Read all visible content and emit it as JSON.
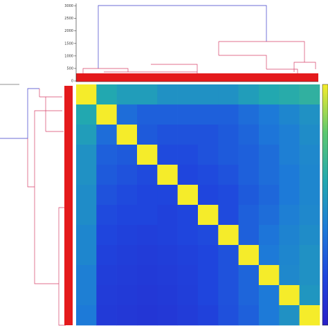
{
  "chart_data": {
    "type": "heatmap",
    "ylim": [
      0,
      3100
    ],
    "yticks": [
      0,
      500,
      1000,
      1500,
      2000,
      2500,
      3000
    ],
    "colormap": [
      "#2a20c8",
      "#1f45dd",
      "#1d7ad8",
      "#22a8b0",
      "#5cc870",
      "#f5ec2a"
    ],
    "matrix": [
      [
        1.0,
        0.6,
        0.55,
        0.55,
        0.5,
        0.5,
        0.5,
        0.5,
        0.55,
        0.6,
        0.62,
        0.65
      ],
      [
        0.6,
        1.0,
        0.35,
        0.3,
        0.3,
        0.3,
        0.3,
        0.3,
        0.35,
        0.4,
        0.45,
        0.5
      ],
      [
        0.55,
        0.35,
        1.0,
        0.28,
        0.25,
        0.25,
        0.25,
        0.28,
        0.32,
        0.38,
        0.42,
        0.48
      ],
      [
        0.5,
        0.3,
        0.28,
        1.0,
        0.22,
        0.22,
        0.25,
        0.28,
        0.3,
        0.35,
        0.42,
        0.46
      ],
      [
        0.5,
        0.28,
        0.25,
        0.22,
        1.0,
        0.2,
        0.22,
        0.25,
        0.3,
        0.35,
        0.4,
        0.45
      ],
      [
        0.48,
        0.25,
        0.22,
        0.2,
        0.2,
        1.0,
        0.2,
        0.22,
        0.28,
        0.33,
        0.4,
        0.45
      ],
      [
        0.48,
        0.22,
        0.2,
        0.2,
        0.18,
        0.2,
        1.0,
        0.22,
        0.3,
        0.35,
        0.42,
        0.46
      ],
      [
        0.45,
        0.2,
        0.18,
        0.17,
        0.18,
        0.2,
        0.22,
        1.0,
        0.3,
        0.38,
        0.44,
        0.48
      ],
      [
        0.45,
        0.18,
        0.16,
        0.15,
        0.16,
        0.18,
        0.2,
        0.25,
        1.0,
        0.4,
        0.45,
        0.5
      ],
      [
        0.42,
        0.16,
        0.15,
        0.14,
        0.15,
        0.17,
        0.2,
        0.25,
        0.32,
        1.0,
        0.46,
        0.5
      ],
      [
        0.42,
        0.15,
        0.14,
        0.13,
        0.14,
        0.16,
        0.2,
        0.25,
        0.32,
        0.4,
        1.0,
        0.52
      ],
      [
        0.4,
        0.14,
        0.13,
        0.12,
        0.13,
        0.15,
        0.18,
        0.24,
        0.3,
        0.4,
        0.5,
        1.0
      ]
    ]
  }
}
